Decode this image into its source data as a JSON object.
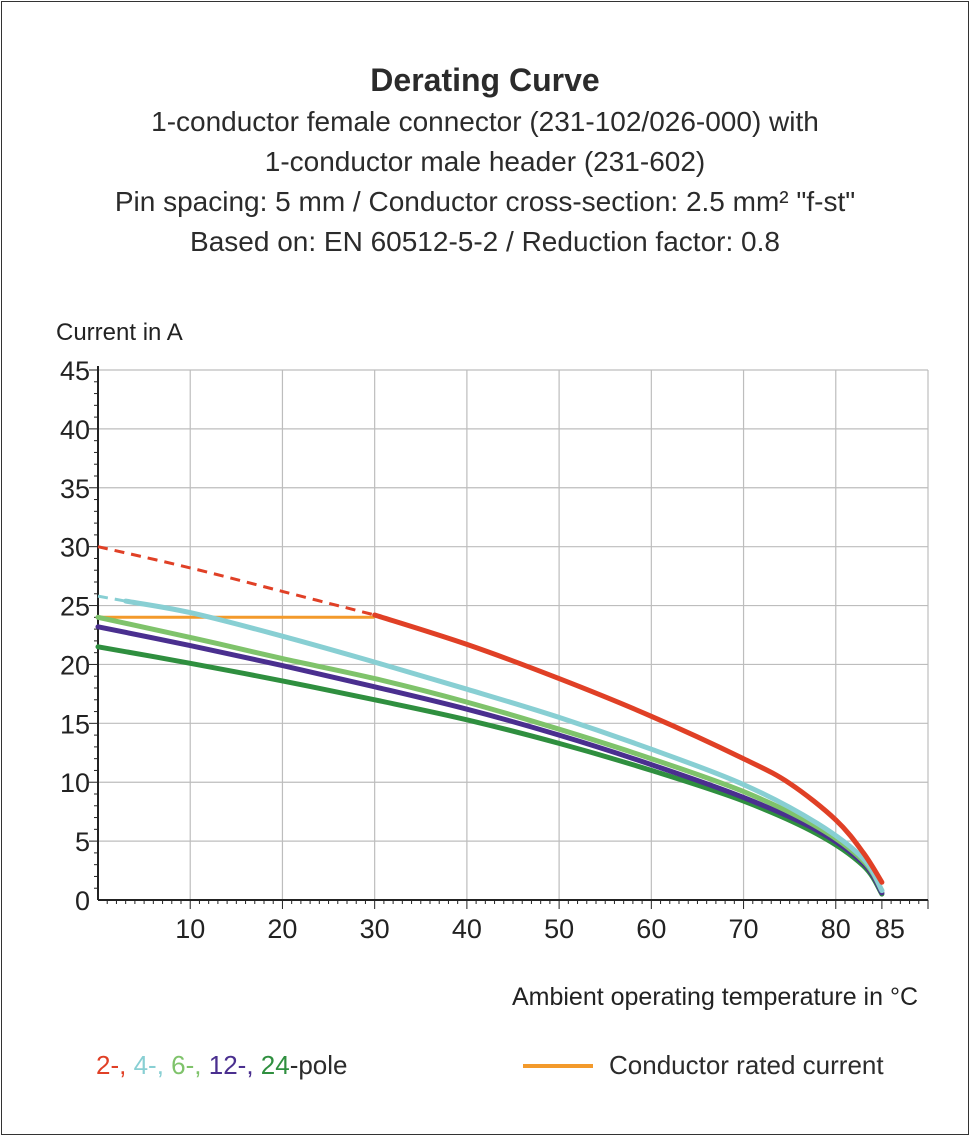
{
  "title": "Derating Curve",
  "subtitle_lines": [
    "1-conductor female connector (231-102/026-000) with",
    "1-conductor male header (231-602)",
    "Pin spacing: 5 mm / Conductor cross-section: 2.5 mm² \"f-st\"",
    "Based on: EN 60512-5-2 / Reduction factor: 0.8"
  ],
  "colors": {
    "red": "#e04026",
    "light_blue": "#88cfd3",
    "light_green": "#7fc36b",
    "purple": "#4a2f8f",
    "green": "#2f8f3f",
    "orange": "#f39a2b",
    "grid": "#bdbdbd",
    "axis": "#222222"
  },
  "legend": {
    "poles": [
      {
        "text": "2-",
        "color": "#e04026"
      },
      {
        "text": "4-",
        "color": "#88cfd3"
      },
      {
        "text": "6-",
        "color": "#7fc36b"
      },
      {
        "text": "12-",
        "color": "#4a2f8f"
      },
      {
        "text": "24",
        "color": "#2f8f3f"
      }
    ],
    "pole_suffix": "-pole",
    "rated_label": "Conductor rated current"
  },
  "chart_data": {
    "type": "line",
    "ylabel": "Current in A",
    "xlabel": "Ambient operating temperature in °C",
    "xlim": [
      0,
      90
    ],
    "ylim": [
      0,
      45
    ],
    "x_ticks": [
      10,
      20,
      30,
      40,
      50,
      60,
      70,
      80,
      85
    ],
    "y_ticks": [
      0,
      5,
      10,
      15,
      20,
      25,
      30,
      35,
      40,
      45
    ],
    "grid": true,
    "series": [
      {
        "name": "2-pole",
        "color": "#e04026",
        "dashed_until_x": 30,
        "points": [
          [
            0,
            30
          ],
          [
            10,
            28.2
          ],
          [
            20,
            26.2
          ],
          [
            30,
            24.2
          ],
          [
            40,
            21.7
          ],
          [
            50,
            18.8
          ],
          [
            60,
            15.6
          ],
          [
            70,
            12
          ],
          [
            75,
            9.9
          ],
          [
            80,
            6.8
          ],
          [
            83,
            4
          ],
          [
            85,
            1.5
          ]
        ]
      },
      {
        "name": "4-pole",
        "color": "#88cfd3",
        "dashed_until_x": 3,
        "points": [
          [
            0,
            25.8
          ],
          [
            10,
            24.4
          ],
          [
            20,
            22.4
          ],
          [
            30,
            20.2
          ],
          [
            40,
            17.9
          ],
          [
            50,
            15.5
          ],
          [
            60,
            12.8
          ],
          [
            70,
            9.8
          ],
          [
            78,
            6.5
          ],
          [
            83,
            3.5
          ],
          [
            85,
            0.8
          ]
        ]
      },
      {
        "name": "6-pole",
        "color": "#7fc36b",
        "points": [
          [
            0,
            24
          ],
          [
            10,
            22.3
          ],
          [
            20,
            20.5
          ],
          [
            30,
            18.8
          ],
          [
            40,
            16.8
          ],
          [
            50,
            14.5
          ],
          [
            60,
            12
          ],
          [
            70,
            9.2
          ],
          [
            78,
            6.2
          ],
          [
            83,
            3.3
          ],
          [
            85,
            0.8
          ]
        ]
      },
      {
        "name": "12-pole",
        "color": "#4a2f8f",
        "points": [
          [
            0,
            23.2
          ],
          [
            10,
            21.6
          ],
          [
            20,
            19.9
          ],
          [
            30,
            18.1
          ],
          [
            40,
            16.2
          ],
          [
            50,
            14
          ],
          [
            60,
            11.5
          ],
          [
            70,
            8.7
          ],
          [
            78,
            5.9
          ],
          [
            83,
            3.1
          ],
          [
            85,
            0.6
          ]
        ]
      },
      {
        "name": "24-pole",
        "color": "#2f8f3f",
        "points": [
          [
            0,
            21.5
          ],
          [
            10,
            20.1
          ],
          [
            20,
            18.6
          ],
          [
            30,
            17
          ],
          [
            40,
            15.3
          ],
          [
            50,
            13.3
          ],
          [
            60,
            11
          ],
          [
            70,
            8.4
          ],
          [
            78,
            5.6
          ],
          [
            83,
            2.9
          ],
          [
            85,
            0.5
          ]
        ]
      }
    ],
    "reference_line": {
      "name": "Conductor rated current",
      "color": "#f39a2b",
      "points": [
        [
          0,
          24
        ],
        [
          30,
          24
        ]
      ]
    }
  }
}
